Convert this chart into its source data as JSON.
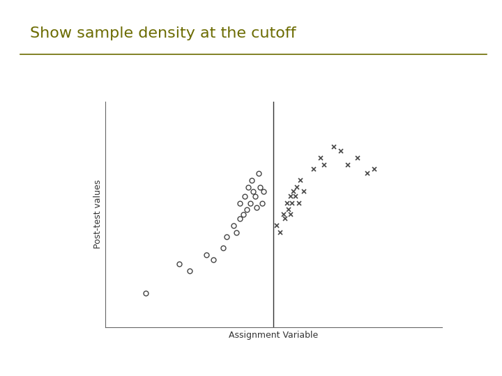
{
  "title": "Show sample density at the cutoff",
  "title_color": "#6b6b00",
  "title_fontsize": 16,
  "xlabel": "Assignment Variable",
  "ylabel": "Post-test values",
  "background_color": "#ffffff",
  "sidebar_color_top": "#4a4a00",
  "sidebar_color_mid": "#c8c87a",
  "sidebar_color_bot": "#8a8a00",
  "plot_bg_color": "#ffffff",
  "cutoff_x": 0.0,
  "xlim": [
    -5,
    5
  ],
  "ylim": [
    0,
    10
  ],
  "circle_points": [
    [
      -3.8,
      1.5
    ],
    [
      -2.8,
      2.8
    ],
    [
      -2.5,
      2.5
    ],
    [
      -2.0,
      3.2
    ],
    [
      -1.8,
      3.0
    ],
    [
      -1.5,
      3.5
    ],
    [
      -1.4,
      4.0
    ],
    [
      -1.2,
      4.5
    ],
    [
      -1.1,
      4.2
    ],
    [
      -1.0,
      5.5
    ],
    [
      -1.0,
      4.8
    ],
    [
      -0.9,
      5.0
    ],
    [
      -0.85,
      5.8
    ],
    [
      -0.8,
      5.2
    ],
    [
      -0.75,
      6.2
    ],
    [
      -0.7,
      5.5
    ],
    [
      -0.65,
      6.5
    ],
    [
      -0.6,
      6.0
    ],
    [
      -0.55,
      5.8
    ],
    [
      -0.5,
      5.3
    ],
    [
      -0.45,
      6.8
    ],
    [
      -0.4,
      6.2
    ],
    [
      -0.35,
      5.5
    ],
    [
      -0.3,
      6.0
    ]
  ],
  "cross_points": [
    [
      0.1,
      4.5
    ],
    [
      0.2,
      4.2
    ],
    [
      0.3,
      5.0
    ],
    [
      0.35,
      4.8
    ],
    [
      0.4,
      5.5
    ],
    [
      0.45,
      5.2
    ],
    [
      0.5,
      5.8
    ],
    [
      0.5,
      5.0
    ],
    [
      0.55,
      5.5
    ],
    [
      0.6,
      6.0
    ],
    [
      0.65,
      5.8
    ],
    [
      0.7,
      6.2
    ],
    [
      0.75,
      5.5
    ],
    [
      0.8,
      6.5
    ],
    [
      0.9,
      6.0
    ],
    [
      1.2,
      7.0
    ],
    [
      1.4,
      7.5
    ],
    [
      1.5,
      7.2
    ],
    [
      1.8,
      8.0
    ],
    [
      2.0,
      7.8
    ],
    [
      2.2,
      7.2
    ],
    [
      2.5,
      7.5
    ],
    [
      2.8,
      6.8
    ],
    [
      3.0,
      7.0
    ]
  ],
  "marker_size": 5,
  "marker_color": "#444444",
  "rule_line_color": "#333333"
}
